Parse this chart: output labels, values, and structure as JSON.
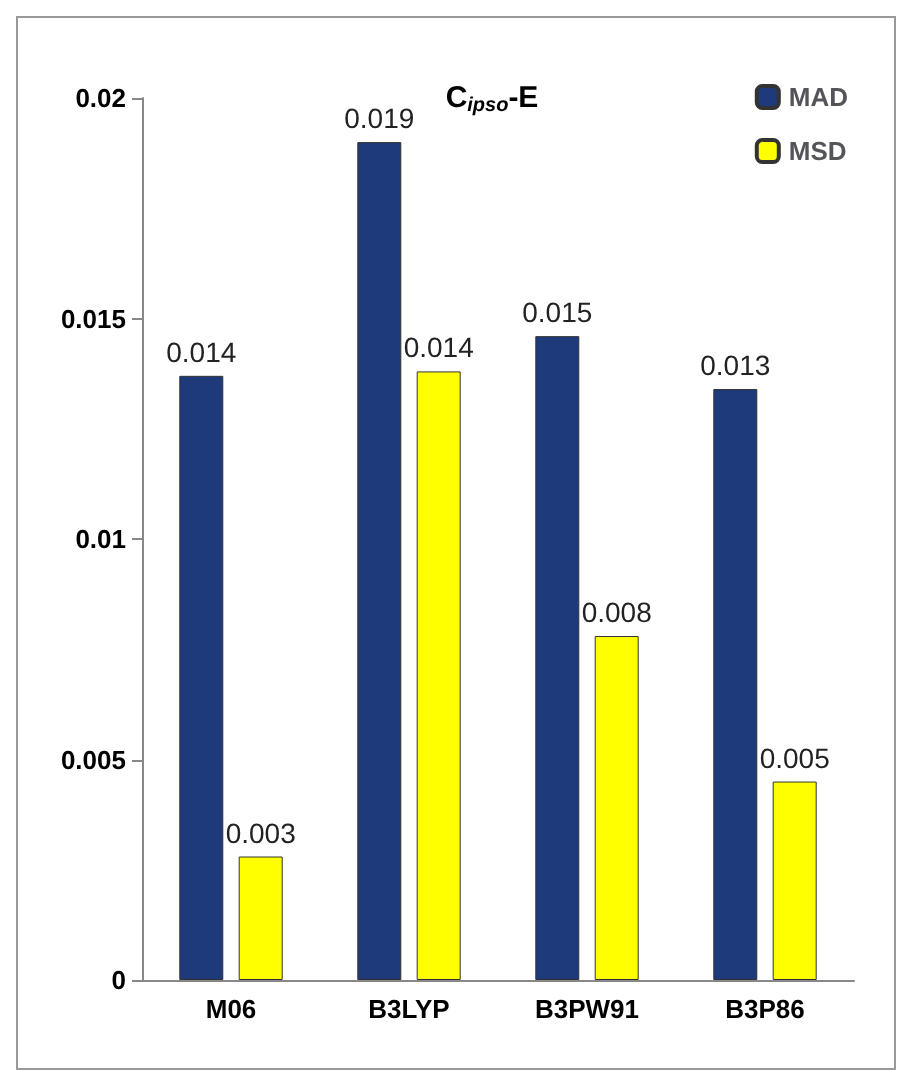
{
  "chart_data": {
    "type": "bar",
    "title": "C$_{ipso}$-E",
    "categories": [
      "M06",
      "B3LYP",
      "B3PW91",
      "B3P86"
    ],
    "series": [
      {
        "name": "MAD",
        "color": "#1f3a7a",
        "values": [
          0.0137,
          0.019,
          0.0146,
          0.0134
        ],
        "value_labels": [
          "0.014",
          "0.019",
          "0.015",
          "0.013"
        ]
      },
      {
        "name": "MSD",
        "color": "#ffff00",
        "values": [
          0.0028,
          0.0138,
          0.0078,
          0.0045
        ],
        "value_labels": [
          "0.003",
          "0.014",
          "0.008",
          "0.005"
        ]
      }
    ],
    "ylim": [
      0,
      0.02
    ],
    "yticks": [
      0,
      0.005,
      0.01,
      0.015,
      0.02
    ],
    "grid": false,
    "legend": "top right"
  }
}
